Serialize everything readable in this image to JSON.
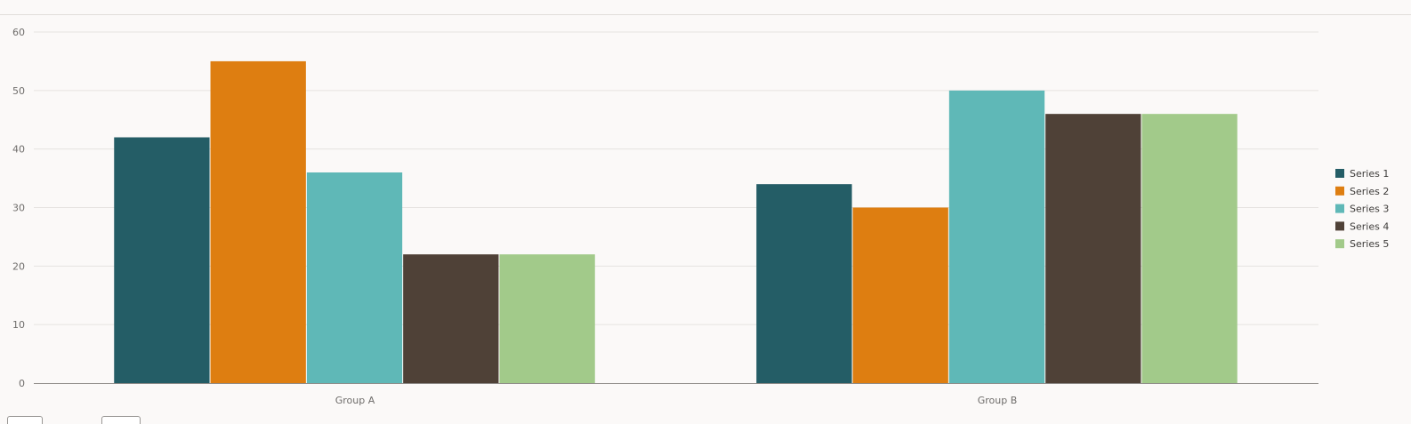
{
  "chart_data": {
    "type": "bar",
    "categories": [
      "Group A",
      "Group B"
    ],
    "series": [
      {
        "name": "Series 1",
        "color": "#245d66",
        "values": [
          42,
          34
        ]
      },
      {
        "name": "Series 2",
        "color": "#de7e11",
        "values": [
          55,
          30
        ]
      },
      {
        "name": "Series 3",
        "color": "#5fb8b7",
        "values": [
          36,
          50
        ]
      },
      {
        "name": "Series 4",
        "color": "#4f4137",
        "values": [
          22,
          46
        ]
      },
      {
        "name": "Series 5",
        "color": "#a2ca8a",
        "values": [
          22,
          46
        ]
      }
    ],
    "yticks": [
      "0",
      "10",
      "20",
      "30",
      "40",
      "50",
      "60"
    ],
    "ylim": [
      0,
      60
    ],
    "grid": true,
    "legend_position": "right",
    "title": "",
    "xlabel": "",
    "ylabel": ""
  }
}
